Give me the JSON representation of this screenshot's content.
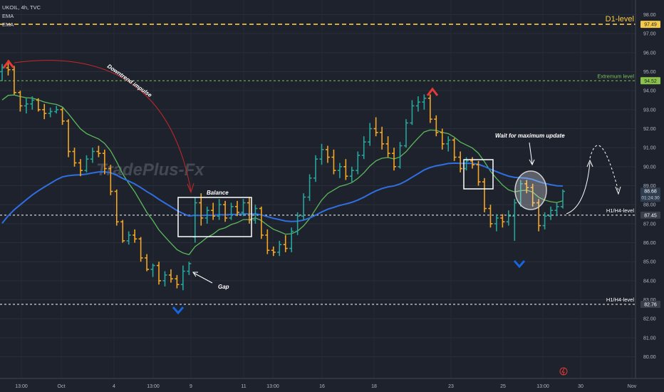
{
  "header": {
    "symbol_line": "UKOIL, 4h, TVC",
    "ema1": "EMA",
    "ema2": "EMA"
  },
  "watermark": "TradePlus-Fx",
  "chart_data": {
    "type": "candlestick",
    "symbol": "UKOIL",
    "timeframe": "4h",
    "y_axis": {
      "ticks": [
        "98.00",
        "97.00",
        "96.00",
        "95.00",
        "94.00",
        "93.00",
        "92.00",
        "91.00",
        "90.00",
        "89.00",
        "88.00",
        "87.00",
        "86.00",
        "85.00",
        "84.00",
        "83.00",
        "82.00",
        "81.00",
        "80.00"
      ],
      "range": [
        79.7,
        98.6
      ]
    },
    "x_axis": {
      "ticks": [
        "13:00",
        "Oct",
        "4",
        "13:00",
        "9",
        "11",
        "13:00",
        "16",
        "18",
        "23",
        "25",
        "13:00",
        "30",
        "Nov"
      ]
    },
    "price_labels": [
      {
        "value": "97.49",
        "color": "#f7c948"
      },
      {
        "value": "94.52",
        "color": "#8bc34a"
      },
      {
        "value": "88.68",
        "color": "#2e3d4f",
        "sub": "01:24:30"
      },
      {
        "value": "87.45",
        "color": "#3a3f4b"
      },
      {
        "value": "82.76",
        "color": "#3a3f4b"
      }
    ],
    "levels": [
      {
        "label": "D1-level",
        "price": 97.49,
        "color": "#f7c948"
      },
      {
        "label": "Extremum  level",
        "price": 94.52,
        "color": "#7cc35a"
      },
      {
        "label": "H1/H4-level",
        "price": 87.45,
        "color": "#ffffff"
      },
      {
        "label": "H1/H4-level",
        "price": 82.76,
        "color": "#ffffff"
      }
    ],
    "annotations": {
      "downtrend": "Downtrend impulse",
      "balance": "Balance",
      "gap": "Gap",
      "wait": "Wait for maximum update"
    },
    "candles": [
      [
        95.0,
        95.4,
        94.5,
        95.2
      ],
      [
        95.2,
        95.6,
        94.8,
        95.1
      ],
      [
        95.1,
        95.3,
        93.8,
        93.9
      ],
      [
        93.9,
        94.0,
        92.9,
        93.2
      ],
      [
        93.2,
        93.6,
        92.8,
        93.3
      ],
      [
        93.3,
        93.7,
        93.0,
        93.5
      ],
      [
        93.5,
        93.6,
        92.9,
        93.0
      ],
      [
        93.0,
        93.3,
        92.5,
        92.8
      ],
      [
        92.8,
        93.1,
        92.6,
        92.9
      ],
      [
        92.9,
        93.2,
        92.8,
        93.0
      ],
      [
        93.0,
        93.1,
        92.2,
        92.4
      ],
      [
        92.4,
        92.5,
        90.5,
        90.8
      ],
      [
        90.8,
        91.0,
        90.0,
        90.2
      ],
      [
        90.2,
        90.4,
        89.5,
        89.8
      ],
      [
        89.8,
        90.6,
        89.7,
        90.4
      ],
      [
        90.4,
        91.0,
        90.2,
        90.8
      ],
      [
        90.8,
        91.1,
        90.5,
        90.7
      ],
      [
        90.7,
        90.9,
        89.6,
        89.9
      ],
      [
        89.9,
        90.1,
        88.5,
        88.7
      ],
      [
        88.7,
        88.8,
        86.9,
        87.1
      ],
      [
        87.1,
        87.2,
        86.0,
        86.1
      ],
      [
        86.1,
        86.6,
        85.9,
        86.4
      ],
      [
        86.4,
        86.7,
        86.0,
        86.2
      ],
      [
        86.2,
        86.3,
        85.0,
        85.2
      ],
      [
        85.2,
        85.4,
        84.5,
        84.6
      ],
      [
        84.6,
        84.9,
        84.2,
        84.8
      ],
      [
        84.8,
        85.0,
        83.8,
        84.0
      ],
      [
        84.0,
        84.5,
        83.7,
        84.3
      ],
      [
        84.3,
        84.6,
        83.9,
        84.1
      ],
      [
        84.1,
        84.3,
        83.6,
        83.8
      ],
      [
        83.8,
        84.8,
        83.5,
        84.5
      ],
      [
        84.5,
        85.0,
        84.3,
        84.9
      ],
      [
        86.3,
        88.4,
        86.0,
        88.1
      ],
      [
        88.1,
        88.6,
        86.9,
        87.3
      ],
      [
        87.3,
        87.9,
        87.0,
        87.7
      ],
      [
        87.7,
        88.1,
        87.2,
        87.4
      ],
      [
        87.4,
        88.3,
        87.2,
        88.0
      ],
      [
        88.0,
        88.2,
        87.1,
        87.3
      ],
      [
        87.3,
        88.1,
        87.2,
        87.9
      ],
      [
        87.9,
        88.2,
        87.4,
        87.6
      ],
      [
        87.6,
        88.3,
        87.4,
        88.1
      ],
      [
        88.1,
        88.4,
        87.0,
        87.2
      ],
      [
        87.2,
        88.0,
        87.0,
        87.8
      ],
      [
        87.8,
        87.9,
        86.2,
        86.4
      ],
      [
        86.4,
        86.7,
        85.4,
        85.6
      ],
      [
        85.6,
        85.8,
        85.3,
        85.5
      ],
      [
        85.5,
        86.1,
        85.3,
        85.9
      ],
      [
        85.9,
        86.4,
        85.5,
        85.7
      ],
      [
        85.7,
        86.8,
        85.5,
        86.6
      ],
      [
        86.6,
        87.6,
        86.4,
        87.4
      ],
      [
        87.4,
        88.6,
        87.2,
        88.4
      ],
      [
        88.4,
        89.6,
        88.2,
        89.4
      ],
      [
        89.4,
        90.6,
        89.2,
        90.4
      ],
      [
        90.4,
        91.2,
        90.1,
        90.9
      ],
      [
        90.9,
        91.1,
        90.2,
        90.5
      ],
      [
        90.5,
        90.9,
        89.6,
        89.8
      ],
      [
        89.8,
        90.2,
        89.4,
        90.0
      ],
      [
        90.0,
        90.4,
        89.3,
        89.5
      ],
      [
        89.5,
        90.0,
        89.2,
        89.8
      ],
      [
        89.8,
        90.8,
        89.6,
        90.6
      ],
      [
        90.6,
        91.6,
        90.4,
        91.3
      ],
      [
        91.3,
        92.3,
        91.1,
        92.0
      ],
      [
        92.0,
        92.6,
        91.6,
        91.8
      ],
      [
        91.8,
        92.1,
        90.9,
        91.2
      ],
      [
        91.2,
        91.6,
        90.5,
        90.7
      ],
      [
        90.7,
        91.0,
        89.8,
        90.0
      ],
      [
        90.0,
        91.3,
        89.9,
        91.1
      ],
      [
        91.1,
        92.5,
        91.0,
        92.3
      ],
      [
        92.3,
        93.5,
        92.2,
        93.2
      ],
      [
        93.2,
        93.7,
        92.9,
        93.4
      ],
      [
        93.4,
        93.8,
        93.0,
        93.6
      ],
      [
        93.6,
        93.8,
        92.3,
        92.5
      ],
      [
        92.5,
        92.7,
        91.6,
        91.8
      ],
      [
        91.8,
        92.0,
        90.9,
        91.2
      ],
      [
        91.2,
        91.6,
        90.8,
        91.4
      ],
      [
        91.4,
        91.5,
        90.3,
        90.5
      ],
      [
        90.5,
        90.8,
        89.7,
        89.9
      ],
      [
        89.9,
        90.5,
        89.8,
        90.3
      ],
      [
        90.3,
        90.5,
        89.9,
        90.1
      ],
      [
        90.1,
        90.3,
        89.0,
        89.2
      ],
      [
        89.2,
        89.4,
        87.6,
        87.8
      ],
      [
        87.8,
        88.0,
        86.8,
        87.0
      ],
      [
        87.0,
        87.5,
        86.6,
        87.3
      ],
      [
        87.3,
        87.5,
        86.8,
        87.1
      ],
      [
        87.1,
        87.7,
        86.9,
        87.4
      ],
      [
        87.4,
        88.3,
        86.1,
        88.1
      ],
      [
        88.1,
        89.3,
        87.9,
        89.1
      ],
      [
        89.1,
        89.3,
        88.6,
        88.9
      ],
      [
        88.9,
        89.1,
        87.9,
        88.1
      ],
      [
        88.1,
        88.3,
        86.6,
        86.9
      ],
      [
        86.9,
        87.6,
        86.7,
        87.4
      ],
      [
        87.4,
        87.9,
        87.2,
        87.7
      ],
      [
        87.7,
        88.1,
        87.4,
        87.9
      ],
      [
        87.9,
        88.8,
        87.8,
        88.7
      ]
    ]
  }
}
